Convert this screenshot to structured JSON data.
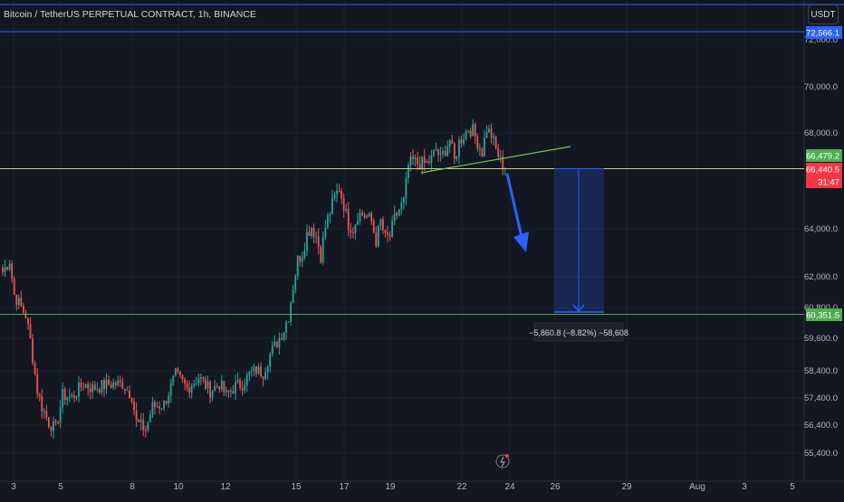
{
  "header": {
    "title": "Bitcoin / TetherUS PERPETUAL CONTRACT, 1h, BINANCE",
    "currency_button": "USDT"
  },
  "chart_data": {
    "type": "candlestick",
    "title": "Bitcoin / TetherUS PERPETUAL CONTRACT, 1h, BINANCE",
    "xlabel": "",
    "ylabel": "",
    "x_ticks": [
      "3",
      "5",
      "8",
      "10",
      "12",
      "15",
      "17",
      "19",
      "22",
      "24",
      "26",
      "29",
      "Aug",
      "3",
      "5"
    ],
    "y_ticks": [
      "72,000.0",
      "70,000.0",
      "68,000.0",
      "64,000.0",
      "62,000.0",
      "60,800.0",
      "59,600.0",
      "58,400.0",
      "57,400.0",
      "56,400.0",
      "55,400.0"
    ],
    "price_labels": [
      {
        "text": "72,566.1",
        "color": "#2962ff",
        "kind": "line"
      },
      {
        "text": "66,479.2",
        "color": "#4caf50",
        "kind": "level"
      },
      {
        "text": "66,440.5",
        "color": "#f23645",
        "kind": "last"
      },
      {
        "text": "31:47",
        "color": "#f23645",
        "kind": "countdown"
      },
      {
        "text": "60,351.5",
        "color": "#4caf50",
        "kind": "level"
      }
    ],
    "horizontal_levels": [
      66479.2,
      60351.5
    ],
    "blue_line": 72566.1,
    "measure": {
      "from": 66479.2,
      "to": 60618.4,
      "label": "−5,860.8 (−8.82%) −58,608"
    },
    "anchors": [
      [
        0,
        62200
      ],
      [
        3,
        62700
      ],
      [
        5,
        61200
      ],
      [
        10,
        60300
      ],
      [
        12,
        59200
      ],
      [
        15,
        57000
      ],
      [
        17,
        56300
      ],
      [
        20,
        55600
      ],
      [
        23,
        55300
      ],
      [
        26,
        56800
      ],
      [
        30,
        56700
      ],
      [
        35,
        57300
      ],
      [
        39,
        57100
      ],
      [
        43,
        57200
      ],
      [
        47,
        57300
      ],
      [
        52,
        57300
      ],
      [
        56,
        56800
      ],
      [
        58,
        55600
      ],
      [
        62,
        55300
      ],
      [
        65,
        56300
      ],
      [
        70,
        56400
      ],
      [
        75,
        57700
      ],
      [
        80,
        57100
      ],
      [
        85,
        57600
      ],
      [
        90,
        57000
      ],
      [
        94,
        57300
      ],
      [
        97,
        56800
      ],
      [
        101,
        57200
      ],
      [
        104,
        57300
      ],
      [
        107,
        57700
      ],
      [
        110,
        57900
      ],
      [
        113,
        57800
      ],
      [
        116,
        58600
      ],
      [
        119,
        59100
      ],
      [
        122,
        59700
      ],
      [
        124,
        60300
      ],
      [
        126,
        61600
      ],
      [
        128,
        62700
      ],
      [
        130,
        63000
      ],
      [
        132,
        63800
      ],
      [
        134,
        64100
      ],
      [
        136,
        63700
      ],
      [
        138,
        62900
      ],
      [
        140,
        64100
      ],
      [
        142,
        64700
      ],
      [
        144,
        65300
      ],
      [
        146,
        65700
      ],
      [
        148,
        65000
      ],
      [
        150,
        64200
      ],
      [
        152,
        64000
      ],
      [
        154,
        64600
      ],
      [
        156,
        64600
      ],
      [
        158,
        64500
      ],
      [
        160,
        64300
      ],
      [
        162,
        63500
      ],
      [
        164,
        64300
      ],
      [
        166,
        63600
      ],
      [
        168,
        63700
      ],
      [
        170,
        64400
      ],
      [
        172,
        64800
      ],
      [
        174,
        65100
      ],
      [
        176,
        66600
      ],
      [
        178,
        66800
      ],
      [
        180,
        66700
      ],
      [
        182,
        66700
      ],
      [
        184,
        66700
      ],
      [
        186,
        66900
      ],
      [
        188,
        67300
      ],
      [
        190,
        66900
      ],
      [
        192,
        67300
      ],
      [
        194,
        67700
      ],
      [
        196,
        66800
      ],
      [
        198,
        67600
      ],
      [
        200,
        67900
      ],
      [
        202,
        68200
      ],
      [
        204,
        68100
      ],
      [
        206,
        67600
      ],
      [
        208,
        67200
      ],
      [
        210,
        68200
      ],
      [
        212,
        67900
      ],
      [
        214,
        67300
      ],
      [
        216,
        66800
      ],
      [
        218,
        66500
      ]
    ]
  }
}
